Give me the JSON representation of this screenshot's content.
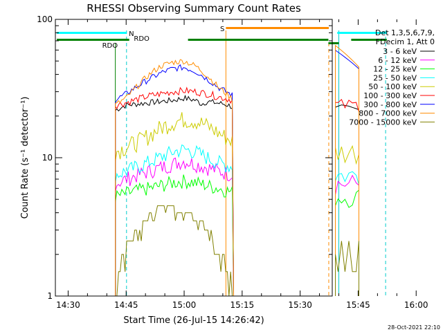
{
  "chart_data": {
    "type": "line",
    "title": "RHESSI Observing Summary Count Rates",
    "xlabel": "Start Time (26-Jul-15 14:26:42)",
    "ylabel": "Count Rate (s⁻¹ detector⁻¹)",
    "x_range_min": [
      26.7,
      98.3
    ],
    "y_range": [
      1,
      100
    ],
    "y_scale": "log",
    "x_ticks": [
      {
        "min": 30,
        "label": "14:30"
      },
      {
        "min": 45,
        "label": "14:45"
      },
      {
        "min": 60,
        "label": "15:00"
      },
      {
        "min": 75,
        "label": "15:15"
      },
      {
        "min": 90,
        "label": "15:30"
      },
      {
        "min": 105,
        "label": "15:45"
      },
      {
        "min": 120,
        "label": "16:00"
      }
    ],
    "y_ticks": [
      {
        "value": 1,
        "label": "1"
      },
      {
        "value": 10,
        "label": "10"
      },
      {
        "value": 100,
        "label": "100"
      }
    ],
    "legend": {
      "placement": "right",
      "header": [
        "Det 1,3,5,6,7,9,",
        "FDecim 1, Att 0"
      ]
    },
    "series": [
      {
        "name": "3 - 6 keV",
        "color": "#000000",
        "x": [
          42.2,
          43.5,
          45,
          48,
          51,
          54,
          57,
          60,
          63,
          64.5,
          66,
          68,
          70,
          71.5,
          72.8
        ],
        "y": [
          22,
          23,
          24,
          24.5,
          25,
          25.5,
          26,
          27,
          26,
          24.5,
          25.5,
          25,
          24.5,
          24,
          23
        ]
      },
      {
        "name": "6 - 12 keV",
        "color": "#ff00ff",
        "x": [
          42.2,
          45,
          48,
          51,
          54,
          57,
          60,
          63,
          66,
          69,
          72.8
        ],
        "y": [
          6.5,
          7,
          7.5,
          8,
          8.5,
          9,
          9.5,
          9,
          8.5,
          8,
          7.5
        ]
      },
      {
        "name": "12 - 25 keV",
        "color": "#00ff00",
        "x": [
          42.2,
          45,
          48,
          51,
          54,
          57,
          60,
          63,
          66,
          69,
          72.8
        ],
        "y": [
          5.2,
          5.5,
          5.8,
          6,
          6.3,
          6.6,
          6.8,
          6.6,
          6.3,
          6,
          5.6
        ]
      },
      {
        "name": "25 - 50 keV",
        "color": "#00ffff",
        "x": [
          42.2,
          45,
          48,
          51,
          54,
          57,
          60,
          63,
          66,
          69,
          72.8
        ],
        "y": [
          7.5,
          8,
          8.6,
          9.3,
          10.1,
          11,
          11.5,
          11,
          10,
          9.2,
          8.5
        ]
      },
      {
        "name": "50 - 100 keV",
        "color": "#cccc00",
        "x": [
          42.2,
          45,
          48,
          51,
          54,
          57,
          60,
          63,
          66,
          69,
          72.8
        ],
        "y": [
          11,
          12,
          13,
          14.5,
          16.5,
          18,
          19,
          18.5,
          17,
          15,
          13
        ]
      },
      {
        "name": "100 - 300 keV",
        "color": "#ff0000",
        "x": [
          42.2,
          45,
          48,
          51,
          54,
          57,
          60,
          63,
          66,
          69,
          72.8
        ],
        "y": [
          24,
          25,
          26.5,
          28,
          29,
          30,
          30.5,
          30,
          29,
          27.5,
          26
        ]
      },
      {
        "name": "300 - 800 keV",
        "color": "#0000ff",
        "x": [
          42.2,
          45,
          48,
          51,
          54,
          57,
          60,
          63,
          66,
          69,
          72.8
        ],
        "y": [
          26,
          29,
          33,
          37,
          41,
          44,
          45,
          42,
          37,
          32,
          28
        ]
      },
      {
        "name": "800 - 7000 keV",
        "color": "#ff8c00",
        "x": [
          42.2,
          45,
          48,
          51,
          54,
          57,
          60,
          63,
          66,
          69,
          72.8
        ],
        "y": [
          24,
          27,
          33,
          40,
          46,
          49,
          50,
          46,
          39,
          32,
          26
        ]
      },
      {
        "name": "7000 - 15000 keV",
        "color": "#808000",
        "x": [
          42.2,
          44,
          46,
          48,
          50,
          52,
          54,
          56,
          58,
          60,
          62,
          64,
          66,
          68,
          70,
          72.8
        ],
        "y": [
          1,
          2,
          2.5,
          3,
          3.5,
          4,
          4.5,
          4.5,
          4.2,
          4,
          3.8,
          3.5,
          3,
          2.5,
          2,
          1
        ]
      }
    ],
    "markers": [
      {
        "label": "S",
        "color": "#ff8c00"
      },
      {
        "label": "N",
        "color": "#00cccc"
      },
      {
        "label": "RDO",
        "color": "#008000"
      },
      {
        "label": "RDO",
        "color": "#008000"
      }
    ]
  },
  "footer": {
    "timestamp": "28-Oct-2021 22:10"
  }
}
